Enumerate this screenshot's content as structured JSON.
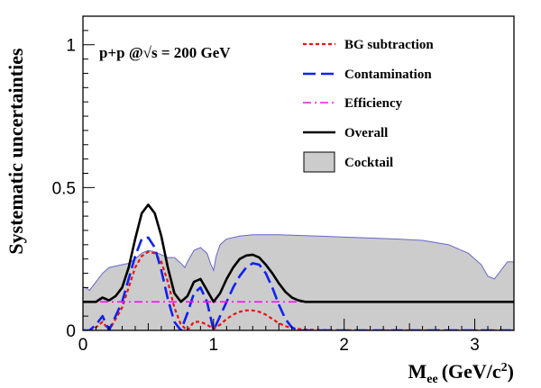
{
  "chart_data": {
    "type": "line",
    "annotation": "p+p @√s = 200 GeV",
    "xlabel": "M",
    "xlabel_sub": "ee",
    "xlabel_units": "(GeV/c",
    "xlabel_units_sup": "2",
    "xlabel_units_close": ")",
    "ylabel": "Systematic uncertainties",
    "xlim": [
      0,
      3.3
    ],
    "ylim": [
      0,
      1.1
    ],
    "xticks": [
      0,
      1,
      2,
      3
    ],
    "xtick_labels": [
      "0",
      "1",
      "2",
      "3"
    ],
    "yticks": [
      0,
      0.5,
      1
    ],
    "ytick_labels": [
      "0",
      "0.5",
      "1"
    ],
    "legend_position": "top-right",
    "series": [
      {
        "name": "BG subtraction",
        "color": "#ee1111",
        "style": "dotted",
        "x": [
          0.0,
          0.05,
          0.1,
          0.15,
          0.2,
          0.25,
          0.3,
          0.35,
          0.4,
          0.45,
          0.5,
          0.55,
          0.6,
          0.65,
          0.7,
          0.75,
          0.8,
          0.85,
          0.9,
          0.95,
          1.0,
          1.05,
          1.1,
          1.15,
          1.2,
          1.25,
          1.3,
          1.35,
          1.4,
          1.45,
          1.5,
          1.55,
          1.6,
          1.65,
          1.7,
          1.8,
          2.0,
          2.5,
          3.0,
          3.3
        ],
        "y": [
          0.0,
          0.0,
          0.01,
          0.03,
          0.0,
          0.04,
          0.08,
          0.15,
          0.22,
          0.26,
          0.275,
          0.27,
          0.24,
          0.17,
          0.08,
          0.02,
          0.0,
          0.03,
          0.03,
          0.02,
          0.005,
          0.02,
          0.04,
          0.055,
          0.065,
          0.07,
          0.07,
          0.065,
          0.055,
          0.04,
          0.025,
          0.015,
          0.008,
          0.005,
          0.003,
          0.001,
          0.0,
          0.0,
          0.0,
          0.0
        ]
      },
      {
        "name": "Contamination",
        "color": "#1122ee",
        "style": "dashed",
        "x": [
          0.0,
          0.05,
          0.1,
          0.15,
          0.2,
          0.25,
          0.3,
          0.35,
          0.4,
          0.45,
          0.5,
          0.55,
          0.6,
          0.65,
          0.7,
          0.75,
          0.8,
          0.85,
          0.9,
          0.95,
          1.0,
          1.05,
          1.1,
          1.15,
          1.2,
          1.25,
          1.3,
          1.35,
          1.4,
          1.45,
          1.5,
          1.55,
          1.6,
          1.65,
          1.7,
          2.0,
          2.5,
          3.0,
          3.3
        ],
        "y": [
          0.0,
          0.0,
          0.02,
          0.05,
          0.0,
          0.05,
          0.1,
          0.18,
          0.26,
          0.32,
          0.325,
          0.29,
          0.21,
          0.11,
          0.03,
          0.0,
          0.06,
          0.13,
          0.15,
          0.1,
          0.0,
          0.05,
          0.1,
          0.15,
          0.19,
          0.22,
          0.235,
          0.23,
          0.2,
          0.15,
          0.09,
          0.04,
          0.01,
          0.0,
          0.0,
          0.0,
          0.0,
          0.0,
          0.0
        ]
      },
      {
        "name": "Efficiency",
        "color": "#ee11ee",
        "style": "dashdot",
        "x": [
          0.0,
          3.3
        ],
        "y": [
          0.1,
          0.1
        ]
      },
      {
        "name": "Overall",
        "color": "#000000",
        "style": "solid",
        "x": [
          0.0,
          0.1,
          0.15,
          0.2,
          0.25,
          0.3,
          0.35,
          0.4,
          0.45,
          0.5,
          0.55,
          0.6,
          0.65,
          0.7,
          0.75,
          0.8,
          0.85,
          0.9,
          0.95,
          1.0,
          1.05,
          1.1,
          1.15,
          1.2,
          1.25,
          1.3,
          1.35,
          1.4,
          1.45,
          1.5,
          1.55,
          1.6,
          1.65,
          1.7,
          1.8,
          2.0,
          2.5,
          3.0,
          3.3
        ],
        "y": [
          0.1,
          0.1,
          0.115,
          0.105,
          0.12,
          0.15,
          0.22,
          0.32,
          0.41,
          0.44,
          0.41,
          0.33,
          0.22,
          0.13,
          0.1,
          0.12,
          0.17,
          0.18,
          0.14,
          0.1,
          0.13,
          0.18,
          0.22,
          0.25,
          0.262,
          0.265,
          0.255,
          0.23,
          0.2,
          0.165,
          0.135,
          0.115,
          0.105,
          0.1,
          0.1,
          0.1,
          0.1,
          0.1,
          0.1
        ]
      },
      {
        "name": "Cocktail",
        "color": "#cccccc",
        "edge_color": "#6666cc",
        "style": "filled",
        "x": [
          0.0,
          0.02,
          0.05,
          0.1,
          0.15,
          0.2,
          0.25,
          0.3,
          0.35,
          0.4,
          0.45,
          0.5,
          0.55,
          0.6,
          0.65,
          0.7,
          0.75,
          0.78,
          0.8,
          0.85,
          0.9,
          0.95,
          0.98,
          1.0,
          1.02,
          1.05,
          1.1,
          1.2,
          1.3,
          1.5,
          1.8,
          2.1,
          2.4,
          2.6,
          2.8,
          2.95,
          3.05,
          3.1,
          3.15,
          3.2,
          3.25,
          3.3
        ],
        "y": [
          0.15,
          0.15,
          0.14,
          0.17,
          0.2,
          0.22,
          0.225,
          0.23,
          0.235,
          0.25,
          0.27,
          0.28,
          0.275,
          0.265,
          0.255,
          0.255,
          0.235,
          0.22,
          0.24,
          0.28,
          0.29,
          0.27,
          0.23,
          0.21,
          0.26,
          0.3,
          0.32,
          0.33,
          0.335,
          0.335,
          0.33,
          0.325,
          0.32,
          0.315,
          0.3,
          0.27,
          0.23,
          0.19,
          0.18,
          0.21,
          0.24,
          0.24
        ]
      }
    ]
  }
}
